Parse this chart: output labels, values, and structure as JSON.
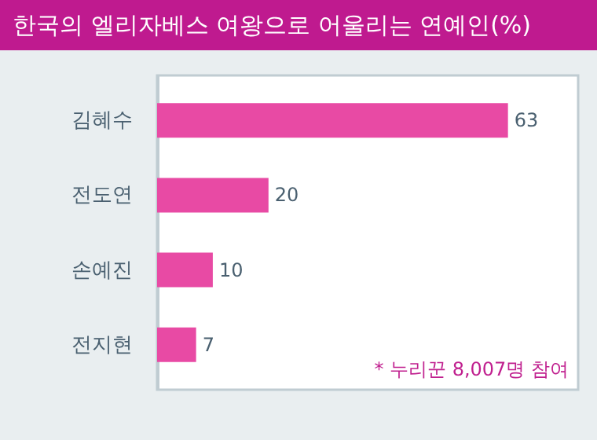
{
  "chart_data": {
    "type": "bar",
    "orientation": "horizontal",
    "title": "한국의 엘리자베스 여왕으로 어울리는 연예인(%)",
    "categories": [
      "김혜수",
      "전도연",
      "손예진",
      "전지현"
    ],
    "values": [
      63,
      20,
      10,
      7
    ],
    "color": "#e84aa4",
    "data_labels": true,
    "annotations": [
      "* 누리꾼 8,007명 참여"
    ]
  }
}
